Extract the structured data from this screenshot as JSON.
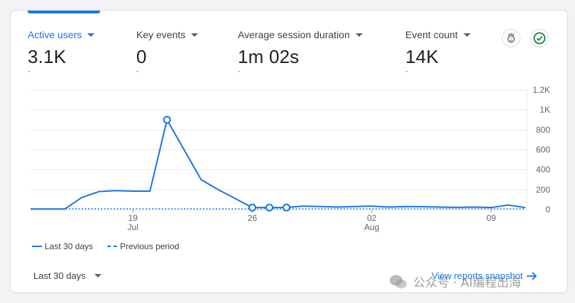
{
  "metrics": [
    {
      "label": "Active users",
      "value": "3.1K",
      "sub": "-",
      "active": true
    },
    {
      "label": "Key events",
      "value": "0",
      "sub": "-"
    },
    {
      "label": "Average session duration",
      "value": "1m 02s",
      "sub": "-"
    },
    {
      "label": "Event count",
      "value": "14K",
      "sub": "-"
    }
  ],
  "icons": [
    "insights-icon",
    "check-circle-icon"
  ],
  "colors": {
    "accent": "#1a73e8",
    "check": "#188038"
  },
  "chart_data": {
    "type": "line",
    "x_tick_labels": [
      {
        "day": "19",
        "month": "Jul"
      },
      {
        "day": "26",
        "month": ""
      },
      {
        "day": "02",
        "month": "Aug"
      },
      {
        "day": "09",
        "month": ""
      }
    ],
    "y_ticks": [
      "0",
      "200",
      "400",
      "600",
      "800",
      "1K",
      "1.2K"
    ],
    "ylim": [
      0,
      1200
    ],
    "grid": true,
    "series": [
      {
        "name": "Last 30 days",
        "style": "solid",
        "values": [
          5,
          5,
          5,
          120,
          180,
          190,
          185,
          185,
          900,
          600,
          300,
          200,
          110,
          20,
          20,
          20,
          35,
          30,
          25,
          30,
          35,
          25,
          30,
          28,
          25,
          22,
          25,
          20,
          45,
          20
        ]
      },
      {
        "name": "Previous period",
        "style": "dashed",
        "values": [
          0,
          0,
          0,
          0,
          0,
          0,
          0,
          0,
          0,
          0,
          0,
          0,
          0,
          0,
          0,
          0,
          0,
          0,
          0,
          0,
          0,
          0,
          0,
          0,
          0,
          0,
          0,
          0,
          0,
          0
        ]
      }
    ],
    "markers_at": [
      8,
      13,
      14,
      15
    ],
    "legend_position": "bottom-left"
  },
  "footer": {
    "range_label": "Last 30 days",
    "link_label": "View reports snapshot",
    "watermark": "公众号 · AI编程出海"
  }
}
